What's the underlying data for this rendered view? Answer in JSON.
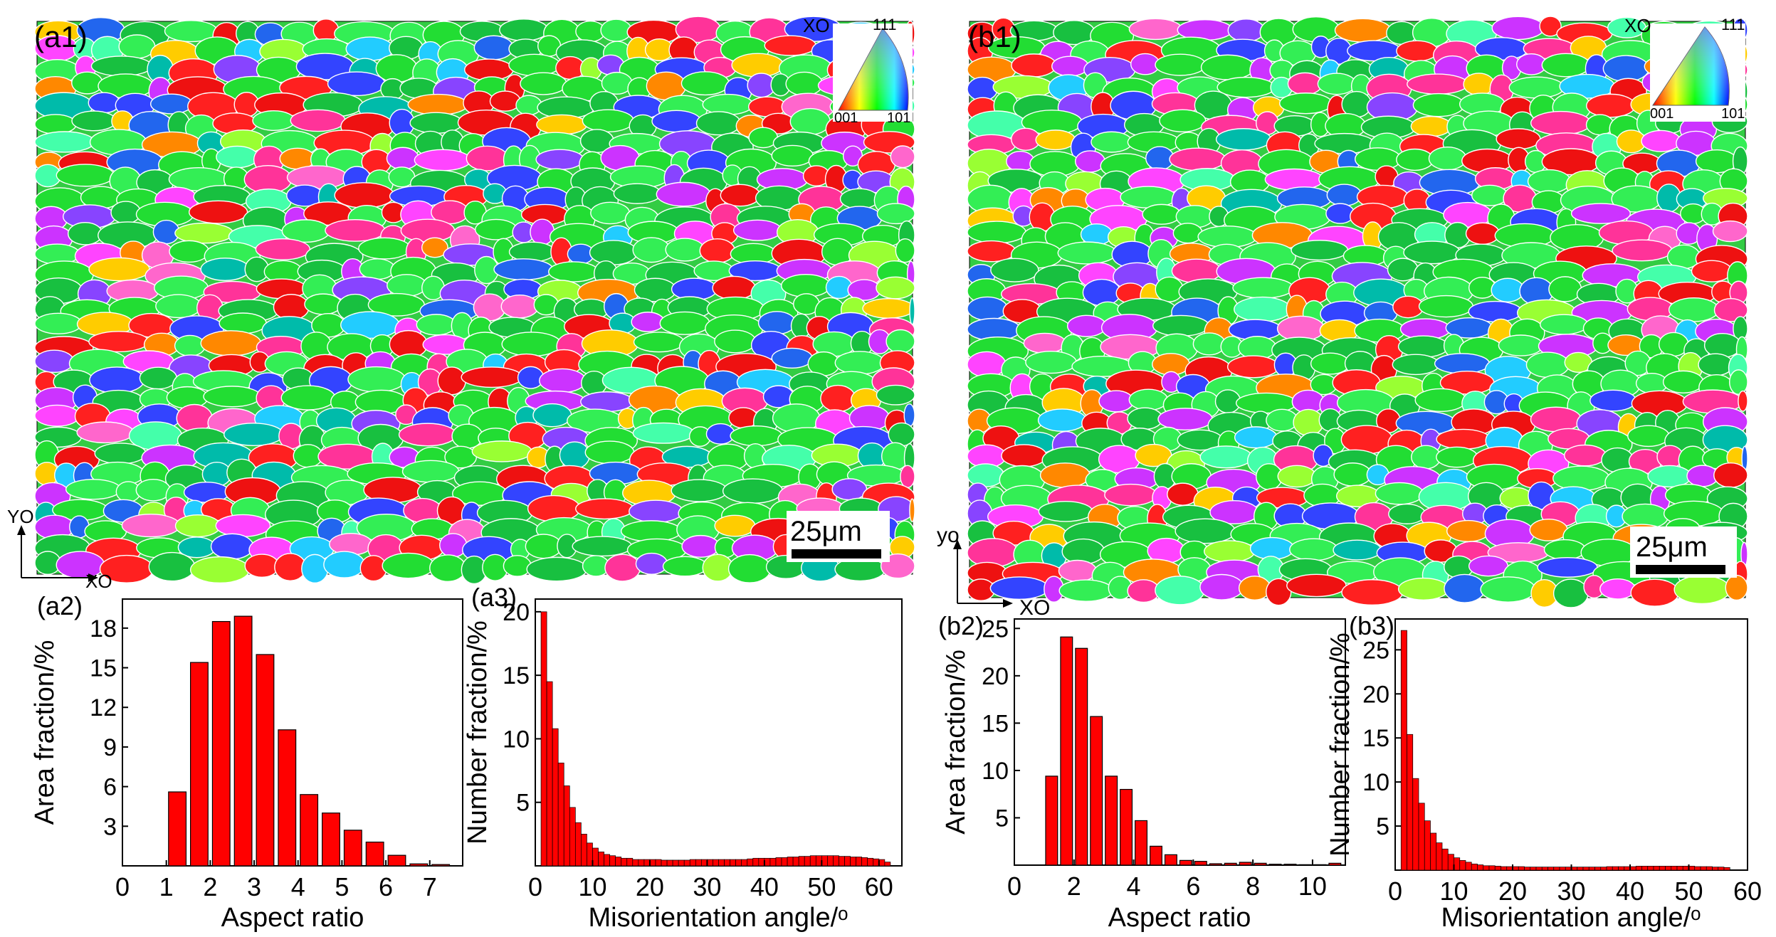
{
  "panels": {
    "a1": {
      "label": "(a1)",
      "scale_bar": "25μm",
      "axis_y": "YO",
      "axis_x": "XO",
      "ipf": {
        "xo": "XO",
        "c111": "111",
        "c001": "001",
        "c101": "101"
      }
    },
    "b1": {
      "label": "(b1)",
      "scale_bar": "25μm",
      "axis_y": "yo",
      "axis_x": "XO",
      "ipf": {
        "xo": "XO",
        "c111": "111",
        "c001": "001",
        "c101": "101"
      }
    }
  },
  "colors": {
    "bar": "#ff0000",
    "bar_edge": "#000000"
  },
  "chart_data": [
    {
      "id": "a2",
      "panel_label": "(a2)",
      "type": "bar",
      "xlabel": "Aspect ratio",
      "ylabel": "Area fraction/%",
      "xlim": [
        0,
        7.75
      ],
      "ylim": [
        0,
        20.2
      ],
      "xticks": [
        "0",
        "1",
        "2",
        "3",
        "4",
        "5",
        "6",
        "7"
      ],
      "xtick_values": [
        0,
        1,
        2,
        3,
        4,
        5,
        6,
        7
      ],
      "yticks": [
        "3",
        "6",
        "9",
        "12",
        "15",
        "18"
      ],
      "ytick_values": [
        3,
        6,
        9,
        12,
        15,
        18
      ],
      "bar_width": 0.4,
      "x": [
        1.25,
        1.75,
        2.25,
        2.75,
        3.25,
        3.75,
        4.25,
        4.75,
        5.25,
        5.75,
        6.25,
        6.75,
        7.25
      ],
      "values": [
        5.6,
        15.4,
        18.5,
        18.9,
        16.0,
        10.3,
        5.4,
        4.0,
        2.7,
        1.8,
        0.8,
        0.15,
        0.1
      ]
    },
    {
      "id": "a3",
      "panel_label": "(a3)",
      "type": "bar",
      "xlabel": "Misorientation angle/ᵒ",
      "ylabel": "Number fraction/%",
      "xlim": [
        0,
        64
      ],
      "ylim": [
        0,
        21
      ],
      "xticks": [
        "0",
        "10",
        "20",
        "30",
        "40",
        "50",
        "60"
      ],
      "xtick_values": [
        0,
        10,
        20,
        30,
        40,
        50,
        60
      ],
      "yticks": [
        "5",
        "10",
        "15",
        "20"
      ],
      "ytick_values": [
        5,
        10,
        15,
        20
      ],
      "bar_width": 1,
      "x": [
        1.5,
        2.5,
        3.5,
        4.5,
        5.5,
        6.5,
        7.5,
        8.5,
        9.5,
        10.5,
        11.5,
        12.5,
        13.5,
        14.5,
        15.5,
        16.5,
        17.5,
        18.5,
        19.5,
        20.5,
        21.5,
        22.5,
        23.5,
        24.5,
        25.5,
        26.5,
        27.5,
        28.5,
        29.5,
        30.5,
        31.5,
        32.5,
        33.5,
        34.5,
        35.5,
        36.5,
        37.5,
        38.5,
        39.5,
        40.5,
        41.5,
        42.5,
        43.5,
        44.5,
        45.5,
        46.5,
        47.5,
        48.5,
        49.5,
        50.5,
        51.5,
        52.5,
        53.5,
        54.5,
        55.5,
        56.5,
        57.5,
        58.5,
        59.5,
        60.5,
        61.5
      ],
      "values": [
        20.0,
        14.5,
        10.8,
        8.1,
        6.3,
        4.6,
        3.4,
        2.5,
        1.8,
        1.4,
        1.1,
        0.9,
        0.8,
        0.7,
        0.6,
        0.6,
        0.5,
        0.5,
        0.5,
        0.5,
        0.5,
        0.45,
        0.45,
        0.45,
        0.45,
        0.45,
        0.5,
        0.5,
        0.5,
        0.5,
        0.5,
        0.5,
        0.5,
        0.5,
        0.5,
        0.5,
        0.55,
        0.6,
        0.6,
        0.6,
        0.6,
        0.65,
        0.65,
        0.7,
        0.7,
        0.75,
        0.75,
        0.8,
        0.8,
        0.8,
        0.8,
        0.8,
        0.75,
        0.75,
        0.7,
        0.7,
        0.65,
        0.6,
        0.55,
        0.5,
        0.3
      ]
    },
    {
      "id": "b2",
      "panel_label": "(b2)",
      "type": "bar",
      "xlabel": "Aspect ratio",
      "ylabel": "Area fraction/%",
      "xlim": [
        0,
        11.1
      ],
      "ylim": [
        0,
        26
      ],
      "xticks": [
        "0",
        "2",
        "4",
        "6",
        "8",
        "10"
      ],
      "xtick_values": [
        0,
        2,
        4,
        6,
        8,
        10
      ],
      "yticks": [
        "5",
        "10",
        "15",
        "20",
        "25"
      ],
      "ytick_values": [
        5,
        10,
        15,
        20,
        25
      ],
      "bar_width": 0.4,
      "x": [
        1.25,
        1.75,
        2.25,
        2.75,
        3.25,
        3.75,
        4.25,
        4.75,
        5.25,
        5.75,
        6.25,
        6.75,
        7.25,
        7.75,
        8.25,
        8.75,
        9.25,
        9.75,
        10.25,
        10.75
      ],
      "values": [
        9.4,
        24.1,
        22.9,
        15.7,
        9.4,
        8.0,
        4.7,
        2.0,
        1.1,
        0.5,
        0.4,
        0.15,
        0.2,
        0.3,
        0.2,
        0.1,
        0.1,
        0.05,
        0.05,
        0.2
      ]
    },
    {
      "id": "b3",
      "panel_label": "(b3)",
      "type": "bar",
      "xlabel": "Misorientation angle/ᵒ",
      "ylabel": "Number fraction/%",
      "xlim": [
        0,
        60
      ],
      "ylim": [
        0,
        28.5
      ],
      "xticks": [
        "0",
        "10",
        "20",
        "30",
        "40",
        "50",
        "60"
      ],
      "xtick_values": [
        0,
        10,
        20,
        30,
        40,
        50,
        60
      ],
      "yticks": [
        "5",
        "10",
        "15",
        "20",
        "25"
      ],
      "ytick_values": [
        5,
        10,
        15,
        20,
        25
      ],
      "bar_width": 1,
      "x": [
        1.5,
        2.5,
        3.5,
        4.5,
        5.5,
        6.5,
        7.5,
        8.5,
        9.5,
        10.5,
        11.5,
        12.5,
        13.5,
        14.5,
        15.5,
        16.5,
        17.5,
        18.5,
        19.5,
        20.5,
        21.5,
        22.5,
        23.5,
        24.5,
        25.5,
        26.5,
        27.5,
        28.5,
        29.5,
        30.5,
        31.5,
        32.5,
        33.5,
        34.5,
        35.5,
        36.5,
        37.5,
        38.5,
        39.5,
        40.5,
        41.5,
        42.5,
        43.5,
        44.5,
        45.5,
        46.5,
        47.5,
        48.5,
        49.5,
        50.5,
        51.5,
        52.5,
        53.5,
        54.5,
        55.5,
        56.5
      ],
      "values": [
        27.2,
        15.4,
        10.4,
        7.6,
        5.6,
        4.2,
        3.1,
        2.4,
        1.8,
        1.4,
        1.1,
        0.9,
        0.7,
        0.6,
        0.5,
        0.5,
        0.45,
        0.4,
        0.4,
        0.4,
        0.4,
        0.35,
        0.35,
        0.35,
        0.35,
        0.35,
        0.35,
        0.35,
        0.35,
        0.35,
        0.35,
        0.35,
        0.35,
        0.35,
        0.35,
        0.4,
        0.4,
        0.4,
        0.4,
        0.4,
        0.45,
        0.45,
        0.45,
        0.45,
        0.45,
        0.45,
        0.45,
        0.45,
        0.45,
        0.45,
        0.4,
        0.4,
        0.4,
        0.35,
        0.35,
        0.3
      ]
    }
  ]
}
